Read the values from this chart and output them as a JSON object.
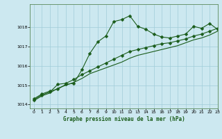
{
  "title": "Graphe pression niveau de la mer (hPa)",
  "background_color": "#cce8f0",
  "grid_color": "#a0ccd8",
  "line_color": "#1a5c1a",
  "xlim": [
    -0.5,
    23
  ],
  "ylim": [
    1013.8,
    1019.2
  ],
  "yticks": [
    1014,
    1015,
    1016,
    1017,
    1018
  ],
  "xticks": [
    0,
    1,
    2,
    3,
    4,
    5,
    6,
    7,
    8,
    9,
    10,
    11,
    12,
    13,
    14,
    15,
    16,
    17,
    18,
    19,
    20,
    21,
    22,
    23
  ],
  "series1_x": [
    0,
    1,
    2,
    3,
    4,
    5,
    6,
    7,
    8,
    9,
    10,
    11,
    12,
    13,
    14,
    15,
    16,
    17,
    18,
    19,
    20,
    21,
    22,
    23
  ],
  "series1_y": [
    1014.3,
    1014.55,
    1014.7,
    1014.8,
    1015.05,
    1015.1,
    1015.8,
    1016.65,
    1017.25,
    1017.55,
    1018.3,
    1018.4,
    1018.6,
    1018.05,
    1017.9,
    1017.65,
    1017.5,
    1017.45,
    1017.55,
    1017.65,
    1018.05,
    1017.95,
    1018.2,
    1017.9
  ],
  "series2_x": [
    0,
    1,
    2,
    3,
    4,
    5,
    6,
    7,
    8,
    9,
    10,
    11,
    12,
    13,
    14,
    15,
    16,
    17,
    18,
    19,
    20,
    21,
    22,
    23
  ],
  "series2_y": [
    1014.25,
    1014.5,
    1014.65,
    1015.05,
    1015.1,
    1015.3,
    1015.55,
    1015.75,
    1015.95,
    1016.15,
    1016.35,
    1016.55,
    1016.75,
    1016.85,
    1016.95,
    1017.05,
    1017.15,
    1017.2,
    1017.3,
    1017.4,
    1017.55,
    1017.65,
    1017.8,
    1017.95
  ],
  "series3_x": [
    0,
    1,
    2,
    3,
    4,
    5,
    6,
    7,
    8,
    9,
    10,
    11,
    12,
    13,
    14,
    15,
    16,
    17,
    18,
    19,
    20,
    21,
    22,
    23
  ],
  "series3_y": [
    1014.2,
    1014.45,
    1014.6,
    1014.85,
    1015.0,
    1015.15,
    1015.35,
    1015.6,
    1015.75,
    1015.9,
    1016.05,
    1016.2,
    1016.4,
    1016.55,
    1016.65,
    1016.75,
    1016.85,
    1016.95,
    1017.05,
    1017.2,
    1017.35,
    1017.45,
    1017.6,
    1017.8
  ]
}
